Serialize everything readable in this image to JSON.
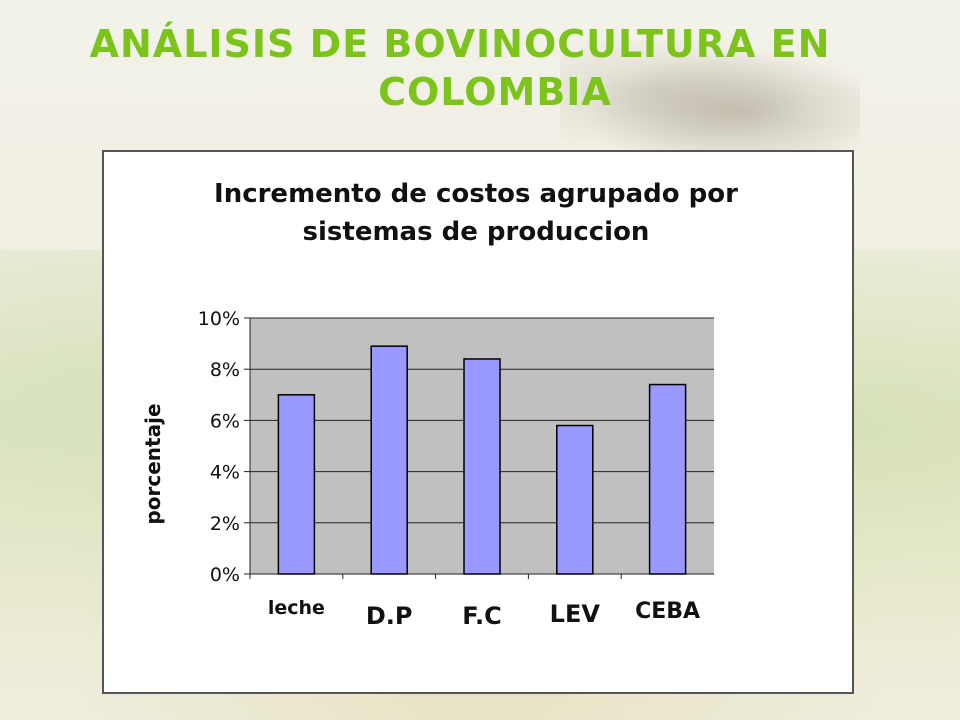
{
  "slide": {
    "title_line_1": "Análisis de Bovinocultura en",
    "title_line_2": "colombia"
  },
  "colors": {
    "title": "#7cc41c",
    "bar_fill": "#9999ff",
    "plot_bg": "#c0c0c0"
  },
  "chart_data": {
    "type": "bar",
    "title": "Incremento de costos agrupado por sistemas de produccion",
    "title_lines": [
      "Incremento de costos agrupado por",
      "sistemas de produccion"
    ],
    "ylabel": "porcentaje",
    "xlabel": "",
    "categories": [
      "leche",
      "D.P",
      "F.C",
      "LEV",
      "CEBA"
    ],
    "values": [
      7.0,
      8.9,
      8.4,
      5.8,
      7.4
    ],
    "yticks": [
      "0%",
      "2%",
      "4%",
      "6%",
      "8%",
      "10%"
    ],
    "ylim": [
      0,
      10
    ],
    "grid": true,
    "legend": false
  }
}
